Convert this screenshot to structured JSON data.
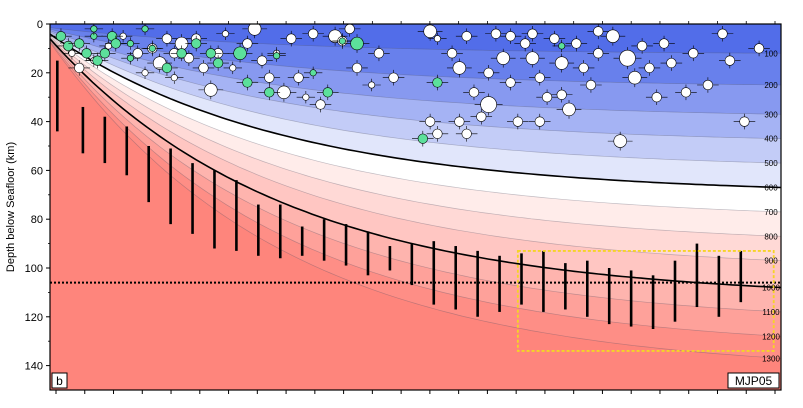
{
  "chart_data": {
    "type": "scatter",
    "panel_label": "b",
    "profile_label": "MJP05",
    "ylabel": "Depth below Seafloor (km)",
    "ylim": [
      0,
      150
    ],
    "y_ticks": [
      0,
      20,
      40,
      60,
      80,
      100,
      120,
      140
    ],
    "y_inverted": true,
    "x_ticks_count": 26,
    "x_labels_shown": false,
    "isotherms": {
      "unit": "°C (implied)",
      "labels": [
        "100",
        "200",
        "300",
        "400",
        "500",
        "600",
        "700",
        "800",
        "900",
        "1000",
        "1100",
        "1200",
        "1300"
      ],
      "label_depths": [
        12,
        25,
        37,
        47,
        57,
        67,
        77,
        87,
        97,
        108,
        118,
        128,
        137
      ],
      "bold": [
        "600",
        "1000"
      ]
    },
    "dotted_line_depth": 106,
    "lab_depth_ranges": [
      {
        "x": 0.01,
        "top": 15,
        "bottom": 44
      },
      {
        "x": 0.045,
        "top": 34,
        "bottom": 53
      },
      {
        "x": 0.075,
        "top": 38,
        "bottom": 57
      },
      {
        "x": 0.105,
        "top": 42,
        "bottom": 62
      },
      {
        "x": 0.135,
        "top": 50,
        "bottom": 73
      },
      {
        "x": 0.165,
        "top": 51,
        "bottom": 82
      },
      {
        "x": 0.195,
        "top": 57,
        "bottom": 86
      },
      {
        "x": 0.225,
        "top": 60,
        "bottom": 92
      },
      {
        "x": 0.255,
        "top": 64,
        "bottom": 93
      },
      {
        "x": 0.285,
        "top": 74,
        "bottom": 95
      },
      {
        "x": 0.315,
        "top": 74,
        "bottom": 96
      },
      {
        "x": 0.345,
        "top": 83,
        "bottom": 95
      },
      {
        "x": 0.375,
        "top": 80,
        "bottom": 97
      },
      {
        "x": 0.405,
        "top": 82,
        "bottom": 99
      },
      {
        "x": 0.435,
        "top": 85,
        "bottom": 103
      },
      {
        "x": 0.465,
        "top": 91,
        "bottom": 101
      },
      {
        "x": 0.495,
        "top": 90,
        "bottom": 107
      },
      {
        "x": 0.525,
        "top": 89,
        "bottom": 115
      },
      {
        "x": 0.555,
        "top": 91,
        "bottom": 117
      },
      {
        "x": 0.585,
        "top": 93,
        "bottom": 120
      },
      {
        "x": 0.615,
        "top": 95,
        "bottom": 118
      },
      {
        "x": 0.645,
        "top": 94,
        "bottom": 115
      },
      {
        "x": 0.675,
        "top": 93,
        "bottom": 118
      },
      {
        "x": 0.705,
        "top": 98,
        "bottom": 117
      },
      {
        "x": 0.735,
        "top": 97,
        "bottom": 120
      },
      {
        "x": 0.765,
        "top": 100,
        "bottom": 123
      },
      {
        "x": 0.795,
        "top": 101,
        "bottom": 124
      },
      {
        "x": 0.825,
        "top": 103,
        "bottom": 125
      },
      {
        "x": 0.855,
        "top": 97,
        "bottom": 122
      },
      {
        "x": 0.885,
        "top": 90,
        "bottom": 116
      },
      {
        "x": 0.915,
        "top": 95,
        "bottom": 120
      },
      {
        "x": 0.945,
        "top": 93,
        "bottom": 114
      }
    ],
    "highlight_box": {
      "x0": 0.64,
      "x1": 0.99,
      "y0": 93,
      "y1": 134,
      "color": "#f5d426"
    },
    "earthquakes_white": [
      [
        0.03,
        12,
        2
      ],
      [
        0.04,
        18,
        3
      ],
      [
        0.06,
        15,
        2
      ],
      [
        0.08,
        9,
        2
      ],
      [
        0.1,
        5,
        2
      ],
      [
        0.12,
        12,
        3
      ],
      [
        0.13,
        20,
        2
      ],
      [
        0.14,
        10,
        3
      ],
      [
        0.15,
        16,
        4
      ],
      [
        0.16,
        6,
        3
      ],
      [
        0.17,
        12,
        3
      ],
      [
        0.17,
        22,
        2
      ],
      [
        0.18,
        8,
        4
      ],
      [
        0.19,
        14,
        3
      ],
      [
        0.2,
        6,
        3
      ],
      [
        0.21,
        18,
        3
      ],
      [
        0.22,
        27,
        4
      ],
      [
        0.23,
        12,
        3
      ],
      [
        0.24,
        4,
        2
      ],
      [
        0.25,
        18,
        2
      ],
      [
        0.27,
        8,
        3
      ],
      [
        0.28,
        2,
        4
      ],
      [
        0.29,
        15,
        3
      ],
      [
        0.3,
        22,
        3
      ],
      [
        0.31,
        12,
        2
      ],
      [
        0.32,
        28,
        4
      ],
      [
        0.33,
        6,
        3
      ],
      [
        0.34,
        22,
        3
      ],
      [
        0.35,
        30,
        2
      ],
      [
        0.36,
        4,
        3
      ],
      [
        0.37,
        33,
        3
      ],
      [
        0.39,
        5,
        4
      ],
      [
        0.4,
        7,
        3
      ],
      [
        0.41,
        2,
        3
      ],
      [
        0.42,
        18,
        3
      ],
      [
        0.44,
        25,
        2
      ],
      [
        0.45,
        12,
        3
      ],
      [
        0.47,
        22,
        3
      ],
      [
        0.52,
        3,
        4
      ],
      [
        0.53,
        6,
        2
      ],
      [
        0.55,
        12,
        3
      ],
      [
        0.56,
        18,
        4
      ],
      [
        0.57,
        5,
        3
      ],
      [
        0.58,
        28,
        3
      ],
      [
        0.59,
        38,
        3
      ],
      [
        0.6,
        33,
        5
      ],
      [
        0.61,
        4,
        3
      ],
      [
        0.62,
        14,
        4
      ],
      [
        0.63,
        24,
        3
      ],
      [
        0.64,
        40,
        3
      ],
      [
        0.65,
        8,
        3
      ],
      [
        0.66,
        14,
        4
      ],
      [
        0.67,
        22,
        3
      ],
      [
        0.68,
        30,
        3
      ],
      [
        0.69,
        6,
        3
      ],
      [
        0.7,
        16,
        4
      ],
      [
        0.71,
        35,
        4
      ],
      [
        0.72,
        8,
        3
      ],
      [
        0.73,
        18,
        3
      ],
      [
        0.74,
        25,
        3
      ],
      [
        0.75,
        12,
        3
      ],
      [
        0.77,
        5,
        4
      ],
      [
        0.78,
        48,
        4
      ],
      [
        0.79,
        14,
        5
      ],
      [
        0.8,
        22,
        4
      ],
      [
        0.81,
        9,
        3
      ],
      [
        0.82,
        18,
        3
      ],
      [
        0.83,
        30,
        3
      ],
      [
        0.84,
        8,
        3
      ],
      [
        0.85,
        16,
        3
      ],
      [
        0.87,
        28,
        3
      ],
      [
        0.88,
        12,
        3
      ],
      [
        0.9,
        25,
        3
      ],
      [
        0.92,
        4,
        3
      ],
      [
        0.93,
        15,
        3
      ],
      [
        0.95,
        40,
        3
      ],
      [
        0.97,
        10,
        3
      ],
      [
        0.52,
        40,
        3
      ],
      [
        0.53,
        45,
        3
      ],
      [
        0.56,
        40,
        3
      ],
      [
        0.57,
        45,
        3
      ],
      [
        0.6,
        20,
        3
      ],
      [
        0.67,
        40,
        3
      ],
      [
        0.7,
        29,
        3
      ],
      [
        0.75,
        3,
        3
      ],
      [
        0.63,
        5,
        3
      ],
      [
        0.66,
        4,
        3
      ]
    ],
    "earthquakes_green": [
      [
        0.015,
        5,
        3
      ],
      [
        0.025,
        9,
        3
      ],
      [
        0.04,
        8,
        3
      ],
      [
        0.05,
        12,
        3
      ],
      [
        0.06,
        5,
        2
      ],
      [
        0.065,
        15,
        3
      ],
      [
        0.075,
        12,
        3
      ],
      [
        0.085,
        5,
        3
      ],
      [
        0.11,
        8,
        2
      ],
      [
        0.13,
        2,
        2
      ],
      [
        0.16,
        18,
        3
      ],
      [
        0.18,
        12,
        3
      ],
      [
        0.2,
        8,
        3
      ],
      [
        0.22,
        12,
        3
      ],
      [
        0.23,
        16,
        3
      ],
      [
        0.26,
        12,
        4
      ],
      [
        0.27,
        24,
        3
      ],
      [
        0.3,
        28,
        3
      ],
      [
        0.31,
        13,
        2
      ],
      [
        0.36,
        20,
        2
      ],
      [
        0.38,
        28,
        3
      ],
      [
        0.4,
        7,
        2
      ],
      [
        0.42,
        8,
        4
      ],
      [
        0.51,
        47,
        3
      ],
      [
        0.53,
        24,
        3
      ],
      [
        0.7,
        9,
        2
      ],
      [
        0.14,
        10,
        2
      ],
      [
        0.06,
        2,
        2
      ],
      [
        0.09,
        8,
        3
      ],
      [
        0.11,
        14,
        2
      ]
    ]
  },
  "colors": {
    "cold": "#4a66e8",
    "neutral": "#ffffff",
    "hot": "#fe857c",
    "quake_green": "#5ce09b",
    "bold_isotherm": "#000000"
  }
}
